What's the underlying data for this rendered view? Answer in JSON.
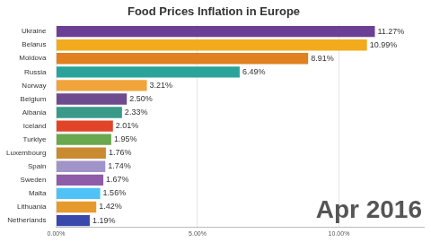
{
  "chart_data": {
    "type": "bar",
    "orientation": "horizontal",
    "title": "Food Prices Inflation in Europe",
    "annotation": "Apr 2016",
    "categories": [
      "Ukraine",
      "Belarus",
      "Moldova",
      "Russia",
      "Norway",
      "Belgium",
      "Albania",
      "Iceland",
      "Turkiye",
      "Luxembourg",
      "Spain",
      "Sweden",
      "Malta",
      "Lithuania",
      "Netherlands"
    ],
    "values": [
      11.27,
      10.99,
      8.91,
      6.49,
      3.21,
      2.5,
      2.33,
      2.01,
      1.95,
      1.76,
      1.74,
      1.67,
      1.56,
      1.42,
      1.19
    ],
    "value_labels": [
      "11.27%",
      "10.99%",
      "8.91%",
      "6.49%",
      "3.21%",
      "2.50%",
      "2.33%",
      "2.01%",
      "1.95%",
      "1.76%",
      "1.74%",
      "1.67%",
      "1.56%",
      "1.42%",
      "1.19%"
    ],
    "data_labels": true,
    "colors": [
      "#6c3f96",
      "#f2ab1d",
      "#e0801f",
      "#2ba39a",
      "#f0a43a",
      "#6e4a8e",
      "#3a9a8a",
      "#e0452a",
      "#6aa84f",
      "#c98a30",
      "#a194c8",
      "#8e5ca8",
      "#4fc3f7",
      "#e69a2e",
      "#3949ab"
    ],
    "xlim": [
      0,
      13
    ],
    "xticks": [
      {
        "value": 0,
        "label": "0.00%"
      },
      {
        "value": 5,
        "label": "5.00%"
      },
      {
        "value": 10,
        "label": "10.00%"
      }
    ],
    "grid": true
  }
}
